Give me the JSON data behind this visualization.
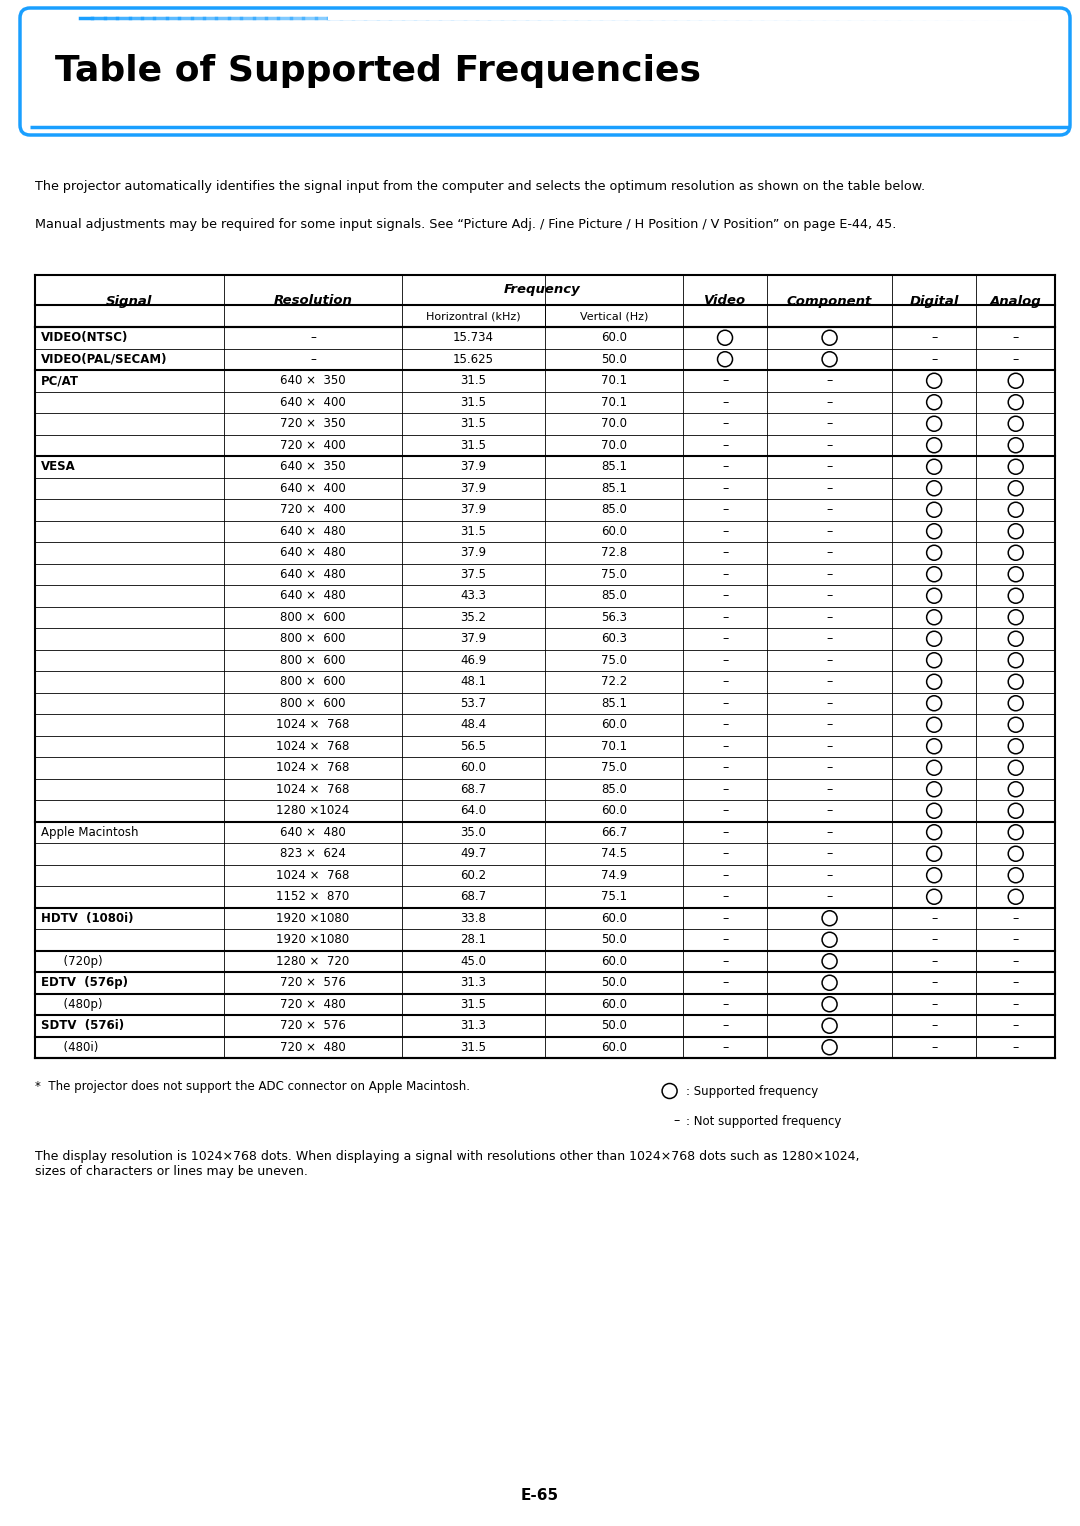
{
  "title": "Table of Supported Frequencies",
  "intro_text1": "The projector automatically identifies the signal input from the computer and selects the optimum resolution as shown on the table below.",
  "intro_text2": "Manual adjustments may be required for some input signals. See “Picture Adj. / Fine Picture / H Position / V Position” on page E-44, 45.",
  "footer_note": "*  The projector does not support the ADC connector on Apple Macintosh.",
  "legend_circle": ": Supported frequency",
  "legend_dash": ": Not supported frequency",
  "footer_text": "The display resolution is 1024×768 dots. When displaying a signal with resolutions other than 1024×768 dots such as 1280×1024,\nsizes of characters or lines may be uneven.",
  "page_number": "E-65",
  "rows": [
    {
      "signal": "VIDEO(NTSC)",
      "resolution": "–",
      "horiz": "15.734",
      "vert": "60.0",
      "video": "O",
      "component": "O",
      "digital": "–",
      "analog": "–",
      "bold_signal": true
    },
    {
      "signal": "VIDEO(PAL/SECAM)",
      "resolution": "–",
      "horiz": "15.625",
      "vert": "50.0",
      "video": "O",
      "component": "O",
      "digital": "–",
      "analog": "–",
      "bold_signal": true
    },
    {
      "signal": "PC/AT",
      "resolution": "640 ×  350",
      "horiz": "31.5",
      "vert": "70.1",
      "video": "–",
      "component": "–",
      "digital": "O",
      "analog": "O",
      "bold_signal": true
    },
    {
      "signal": "",
      "resolution": "640 ×  400",
      "horiz": "31.5",
      "vert": "70.1",
      "video": "–",
      "component": "–",
      "digital": "O",
      "analog": "O",
      "bold_signal": false
    },
    {
      "signal": "",
      "resolution": "720 ×  350",
      "horiz": "31.5",
      "vert": "70.0",
      "video": "–",
      "component": "–",
      "digital": "O",
      "analog": "O",
      "bold_signal": false
    },
    {
      "signal": "",
      "resolution": "720 ×  400",
      "horiz": "31.5",
      "vert": "70.0",
      "video": "–",
      "component": "–",
      "digital": "O",
      "analog": "O",
      "bold_signal": false
    },
    {
      "signal": "VESA",
      "resolution": "640 ×  350",
      "horiz": "37.9",
      "vert": "85.1",
      "video": "–",
      "component": "–",
      "digital": "O",
      "analog": "O",
      "bold_signal": true
    },
    {
      "signal": "",
      "resolution": "640 ×  400",
      "horiz": "37.9",
      "vert": "85.1",
      "video": "–",
      "component": "–",
      "digital": "O",
      "analog": "O",
      "bold_signal": false
    },
    {
      "signal": "",
      "resolution": "720 ×  400",
      "horiz": "37.9",
      "vert": "85.0",
      "video": "–",
      "component": "–",
      "digital": "O",
      "analog": "O",
      "bold_signal": false
    },
    {
      "signal": "",
      "resolution": "640 ×  480",
      "horiz": "31.5",
      "vert": "60.0",
      "video": "–",
      "component": "–",
      "digital": "O",
      "analog": "O",
      "bold_signal": false
    },
    {
      "signal": "",
      "resolution": "640 ×  480",
      "horiz": "37.9",
      "vert": "72.8",
      "video": "–",
      "component": "–",
      "digital": "O",
      "analog": "O",
      "bold_signal": false
    },
    {
      "signal": "",
      "resolution": "640 ×  480",
      "horiz": "37.5",
      "vert": "75.0",
      "video": "–",
      "component": "–",
      "digital": "O",
      "analog": "O",
      "bold_signal": false
    },
    {
      "signal": "",
      "resolution": "640 ×  480",
      "horiz": "43.3",
      "vert": "85.0",
      "video": "–",
      "component": "–",
      "digital": "O",
      "analog": "O",
      "bold_signal": false
    },
    {
      "signal": "",
      "resolution": "800 ×  600",
      "horiz": "35.2",
      "vert": "56.3",
      "video": "–",
      "component": "–",
      "digital": "O",
      "analog": "O",
      "bold_signal": false
    },
    {
      "signal": "",
      "resolution": "800 ×  600",
      "horiz": "37.9",
      "vert": "60.3",
      "video": "–",
      "component": "–",
      "digital": "O",
      "analog": "O",
      "bold_signal": false
    },
    {
      "signal": "",
      "resolution": "800 ×  600",
      "horiz": "46.9",
      "vert": "75.0",
      "video": "–",
      "component": "–",
      "digital": "O",
      "analog": "O",
      "bold_signal": false
    },
    {
      "signal": "",
      "resolution": "800 ×  600",
      "horiz": "48.1",
      "vert": "72.2",
      "video": "–",
      "component": "–",
      "digital": "O",
      "analog": "O",
      "bold_signal": false
    },
    {
      "signal": "",
      "resolution": "800 ×  600",
      "horiz": "53.7",
      "vert": "85.1",
      "video": "–",
      "component": "–",
      "digital": "O",
      "analog": "O",
      "bold_signal": false
    },
    {
      "signal": "",
      "resolution": "1024 ×  768",
      "horiz": "48.4",
      "vert": "60.0",
      "video": "–",
      "component": "–",
      "digital": "O",
      "analog": "O",
      "bold_signal": false
    },
    {
      "signal": "",
      "resolution": "1024 ×  768",
      "horiz": "56.5",
      "vert": "70.1",
      "video": "–",
      "component": "–",
      "digital": "O",
      "analog": "O",
      "bold_signal": false
    },
    {
      "signal": "",
      "resolution": "1024 ×  768",
      "horiz": "60.0",
      "vert": "75.0",
      "video": "–",
      "component": "–",
      "digital": "O",
      "analog": "O",
      "bold_signal": false
    },
    {
      "signal": "",
      "resolution": "1024 ×  768",
      "horiz": "68.7",
      "vert": "85.0",
      "video": "–",
      "component": "–",
      "digital": "O",
      "analog": "O",
      "bold_signal": false
    },
    {
      "signal": "",
      "resolution": "1280 ×1024",
      "horiz": "64.0",
      "vert": "60.0",
      "video": "–",
      "component": "–",
      "digital": "O",
      "analog": "O",
      "bold_signal": false
    },
    {
      "signal": "Apple Macintosh",
      "resolution": "640 ×  480",
      "horiz": "35.0",
      "vert": "66.7",
      "video": "–",
      "component": "–",
      "digital": "O",
      "analog": "O",
      "bold_signal": false
    },
    {
      "signal": "",
      "resolution": "823 ×  624",
      "horiz": "49.7",
      "vert": "74.5",
      "video": "–",
      "component": "–",
      "digital": "O",
      "analog": "O",
      "bold_signal": false
    },
    {
      "signal": "",
      "resolution": "1024 ×  768",
      "horiz": "60.2",
      "vert": "74.9",
      "video": "–",
      "component": "–",
      "digital": "O",
      "analog": "O",
      "bold_signal": false
    },
    {
      "signal": "",
      "resolution": "1152 ×  870",
      "horiz": "68.7",
      "vert": "75.1",
      "video": "–",
      "component": "–",
      "digital": "O",
      "analog": "O",
      "bold_signal": false
    },
    {
      "signal": "HDTV  (1080i)",
      "resolution": "1920 ×1080",
      "horiz": "33.8",
      "vert": "60.0",
      "video": "–",
      "component": "O",
      "digital": "–",
      "analog": "–",
      "bold_signal": true
    },
    {
      "signal": "",
      "resolution": "1920 ×1080",
      "horiz": "28.1",
      "vert": "50.0",
      "video": "–",
      "component": "O",
      "digital": "–",
      "analog": "–",
      "bold_signal": false
    },
    {
      "signal": "      (720p)",
      "resolution": "1280 ×  720",
      "horiz": "45.0",
      "vert": "60.0",
      "video": "–",
      "component": "O",
      "digital": "–",
      "analog": "–",
      "bold_signal": false
    },
    {
      "signal": "EDTV  (576p)",
      "resolution": "720 ×  576",
      "horiz": "31.3",
      "vert": "50.0",
      "video": "–",
      "component": "O",
      "digital": "–",
      "analog": "–",
      "bold_signal": true
    },
    {
      "signal": "      (480p)",
      "resolution": "720 ×  480",
      "horiz": "31.5",
      "vert": "60.0",
      "video": "–",
      "component": "O",
      "digital": "–",
      "analog": "–",
      "bold_signal": false
    },
    {
      "signal": "SDTV  (576i)",
      "resolution": "720 ×  576",
      "horiz": "31.3",
      "vert": "50.0",
      "video": "–",
      "component": "O",
      "digital": "–",
      "analog": "–",
      "bold_signal": true
    },
    {
      "signal": "      (480i)",
      "resolution": "720 ×  480",
      "horiz": "31.5",
      "vert": "60.0",
      "video": "–",
      "component": "O",
      "digital": "–",
      "analog": "–",
      "bold_signal": false
    }
  ],
  "thick_borders_after": [
    1,
    5,
    22,
    26,
    28,
    29,
    30,
    31,
    32,
    33
  ],
  "blue_color": "#1a9fff",
  "background_color": "#ffffff",
  "text_color": "#000000"
}
